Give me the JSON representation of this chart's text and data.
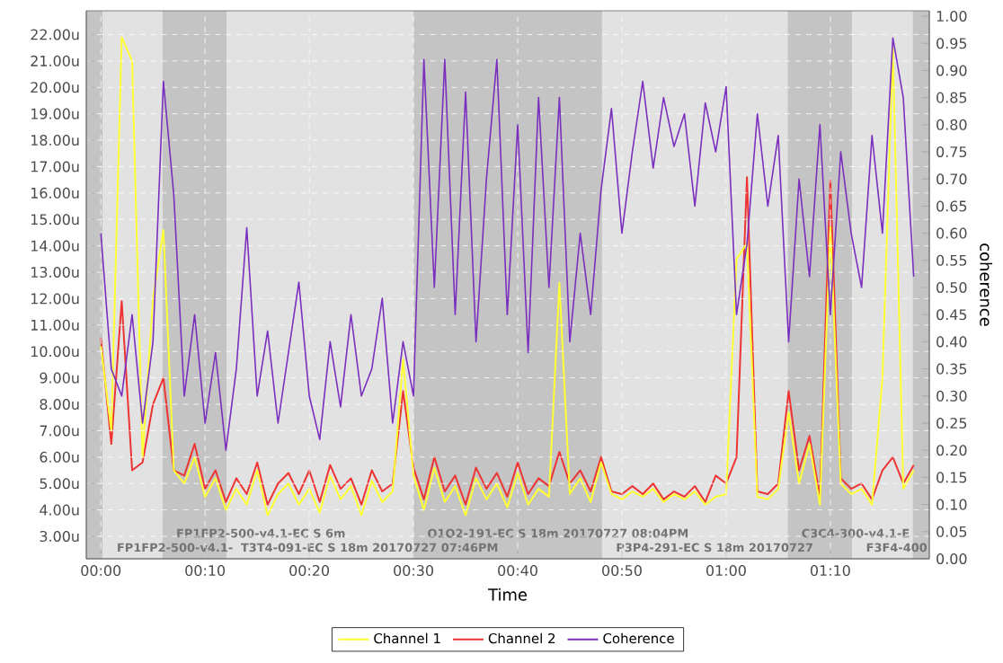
{
  "chart_data": {
    "type": "line",
    "xlabel": "Time",
    "y2label": "coherence",
    "grid": true,
    "legend": "bottom",
    "x": [
      0,
      1,
      2,
      3,
      4,
      5,
      6,
      7,
      8,
      9,
      10,
      11,
      12,
      13,
      14,
      15,
      16,
      17,
      18,
      19,
      20,
      21,
      22,
      23,
      24,
      25,
      26,
      27,
      28,
      29,
      30,
      31,
      32,
      33,
      34,
      35,
      36,
      37,
      38,
      39,
      40,
      41,
      42,
      43,
      44,
      45,
      46,
      47,
      48,
      49,
      50,
      51,
      52,
      53,
      54,
      55,
      56,
      57,
      58,
      59,
      60,
      61,
      62,
      63,
      64,
      65,
      66,
      67,
      68,
      69,
      70,
      71,
      72,
      73,
      74,
      75,
      76,
      77,
      78
    ],
    "series": [
      {
        "name": "Channel 1",
        "color": "#ffff33",
        "axis": "y",
        "values": [
          10.2,
          7,
          21.9,
          21,
          6,
          12,
          14.6,
          5.5,
          5,
          6,
          4.5,
          5.2,
          4,
          4.8,
          4.2,
          5.5,
          3.8,
          4.6,
          5,
          4.2,
          4.8,
          3.9,
          5.3,
          4.4,
          4.9,
          3.8,
          5.1,
          4.3,
          4.7,
          9.7,
          5.3,
          4,
          5.6,
          4.3,
          4.9,
          3.8,
          5.2,
          4.4,
          5,
          4.1,
          5.4,
          4.2,
          4.8,
          4.5,
          12.6,
          4.6,
          5.2,
          4.3,
          5.8,
          4.6,
          4.4,
          4.7,
          4.5,
          4.8,
          4.3,
          4.6,
          4.4,
          4.7,
          4.2,
          4.5,
          4.6,
          13.5,
          14.1,
          4.5,
          4.4,
          4.8,
          7.7,
          5,
          6.5,
          4.2,
          14.7,
          5,
          4.6,
          4.8,
          4.2,
          9,
          21.5,
          4.8,
          5.5
        ]
      },
      {
        "name": "Channel 2",
        "color": "#ee3333",
        "axis": "y",
        "values": [
          10.5,
          6.5,
          11.9,
          5.5,
          5.8,
          8,
          9,
          5.5,
          5.3,
          6.5,
          4.8,
          5.5,
          4.3,
          5.2,
          4.6,
          5.8,
          4.2,
          5,
          5.4,
          4.6,
          5.5,
          4.3,
          5.7,
          4.8,
          5.2,
          4.2,
          5.5,
          4.7,
          5,
          8.5,
          5.6,
          4.4,
          6,
          4.7,
          5.3,
          4.2,
          5.6,
          4.8,
          5.4,
          4.5,
          5.8,
          4.6,
          5.2,
          4.9,
          6.2,
          5,
          5.5,
          4.7,
          6,
          4.7,
          4.6,
          4.9,
          4.6,
          5,
          4.4,
          4.7,
          4.5,
          4.9,
          4.3,
          5.3,
          5,
          6,
          16.6,
          4.7,
          4.6,
          5,
          8.5,
          5.5,
          6.8,
          4.5,
          16.5,
          5.2,
          4.8,
          5,
          4.4,
          5.5,
          6,
          5,
          5.7
        ]
      },
      {
        "name": "Coherence",
        "color": "#7b2fbe",
        "axis": "y2",
        "values": [
          0.6,
          0.35,
          0.3,
          0.45,
          0.25,
          0.4,
          0.88,
          0.67,
          0.3,
          0.45,
          0.25,
          0.38,
          0.2,
          0.35,
          0.61,
          0.3,
          0.42,
          0.25,
          0.38,
          0.51,
          0.3,
          0.22,
          0.4,
          0.28,
          0.45,
          0.3,
          0.35,
          0.48,
          0.25,
          0.4,
          0.3,
          0.92,
          0.5,
          0.92,
          0.45,
          0.86,
          0.4,
          0.7,
          0.92,
          0.45,
          0.8,
          0.38,
          0.85,
          0.5,
          0.85,
          0.4,
          0.6,
          0.45,
          0.68,
          0.83,
          0.6,
          0.75,
          0.88,
          0.72,
          0.85,
          0.76,
          0.82,
          0.65,
          0.84,
          0.75,
          0.87,
          0.45,
          0.58,
          0.82,
          0.65,
          0.78,
          0.4,
          0.7,
          0.52,
          0.8,
          0.45,
          0.75,
          0.6,
          0.5,
          0.78,
          0.6,
          0.96,
          0.85,
          0.52
        ]
      }
    ],
    "xlim": [
      -1.4,
      79.5
    ],
    "ylim": [
      2.15,
      22.9
    ],
    "y2lim": [
      0,
      1.01
    ],
    "xticks": [
      {
        "value": 0,
        "label": "00:00"
      },
      {
        "value": 10,
        "label": "00:10"
      },
      {
        "value": 20,
        "label": "00:20"
      },
      {
        "value": 30,
        "label": "00:30"
      },
      {
        "value": 40,
        "label": "00:40"
      },
      {
        "value": 50,
        "label": "00:50"
      },
      {
        "value": 60,
        "label": "01:00"
      },
      {
        "value": 70,
        "label": "01:10"
      }
    ],
    "yticks": [
      {
        "value": 3,
        "label": "3.00u"
      },
      {
        "value": 4,
        "label": "4.00u"
      },
      {
        "value": 5,
        "label": "5.00u"
      },
      {
        "value": 6,
        "label": "6.00u"
      },
      {
        "value": 7,
        "label": "7.00u"
      },
      {
        "value": 8,
        "label": "8.00u"
      },
      {
        "value": 9,
        "label": "9.00u"
      },
      {
        "value": 10,
        "label": "10.00u"
      },
      {
        "value": 11,
        "label": "11.00u"
      },
      {
        "value": 12,
        "label": "12.00u"
      },
      {
        "value": 13,
        "label": "13.00u"
      },
      {
        "value": 14,
        "label": "14.00u"
      },
      {
        "value": 15,
        "label": "15.00u"
      },
      {
        "value": 16,
        "label": "16.00u"
      },
      {
        "value": 17,
        "label": "17.00u"
      },
      {
        "value": 18,
        "label": "18.00u"
      },
      {
        "value": 19,
        "label": "19.00u"
      },
      {
        "value": 20,
        "label": "20.00u"
      },
      {
        "value": 21,
        "label": "21.00u"
      },
      {
        "value": 22,
        "label": "22.00u"
      }
    ],
    "y2ticks": [
      {
        "value": 0,
        "label": "0.00"
      },
      {
        "value": 0.05,
        "label": "0.05"
      },
      {
        "value": 0.1,
        "label": "0.10"
      },
      {
        "value": 0.15,
        "label": "0.15"
      },
      {
        "value": 0.2,
        "label": "0.20"
      },
      {
        "value": 0.25,
        "label": "0.25"
      },
      {
        "value": 0.3,
        "label": "0.30"
      },
      {
        "value": 0.35,
        "label": "0.35"
      },
      {
        "value": 0.4,
        "label": "0.40"
      },
      {
        "value": 0.45,
        "label": "0.45"
      },
      {
        "value": 0.5,
        "label": "0.50"
      },
      {
        "value": 0.55,
        "label": "0.55"
      },
      {
        "value": 0.6,
        "label": "0.60"
      },
      {
        "value": 0.65,
        "label": "0.65"
      },
      {
        "value": 0.7,
        "label": "0.70"
      },
      {
        "value": 0.75,
        "label": "0.75"
      },
      {
        "value": 0.8,
        "label": "0.80"
      },
      {
        "value": 0.85,
        "label": "0.85"
      },
      {
        "value": 0.9,
        "label": "0.90"
      },
      {
        "value": 0.95,
        "label": "0.95"
      },
      {
        "value": 1,
        "label": "1.00"
      }
    ],
    "bands": [
      {
        "axis": "x",
        "from": -1.4,
        "to": 0.2,
        "color": "#c4c4c4"
      },
      {
        "axis": "x",
        "from": 0.2,
        "to": 5.9,
        "color": "#e2e2e2",
        "label": "FP1FP2-500-v4.1-"
      },
      {
        "axis": "x",
        "from": 5.9,
        "to": 12.1,
        "color": "#c4c4c4",
        "label": "FP1FP2-500-v4.1-EC S 6m"
      },
      {
        "axis": "x",
        "from": 12.1,
        "to": 30,
        "color": "#e2e2e2",
        "label": "T3T4-091-EC S 18m 20170727 07:46PM"
      },
      {
        "axis": "x",
        "from": 30,
        "to": 48.1,
        "color": "#c4c4c4",
        "label": "O1O2-191-EC S 18m 20170727 08:04PM"
      },
      {
        "axis": "x",
        "from": 48.1,
        "to": 65.9,
        "color": "#e2e2e2",
        "label": "P3P4-291-EC S 18m 20170727"
      },
      {
        "axis": "x",
        "from": 65.9,
        "to": 72.1,
        "color": "#c4c4c4",
        "label": "C3C4-300-v4.1-E"
      },
      {
        "axis": "x",
        "from": 72.1,
        "to": 77.9,
        "color": "#e2e2e2",
        "label": "F3F4-400"
      },
      {
        "axis": "x",
        "from": 77.9,
        "to": 79.5,
        "color": "#c4c4c4"
      }
    ]
  }
}
